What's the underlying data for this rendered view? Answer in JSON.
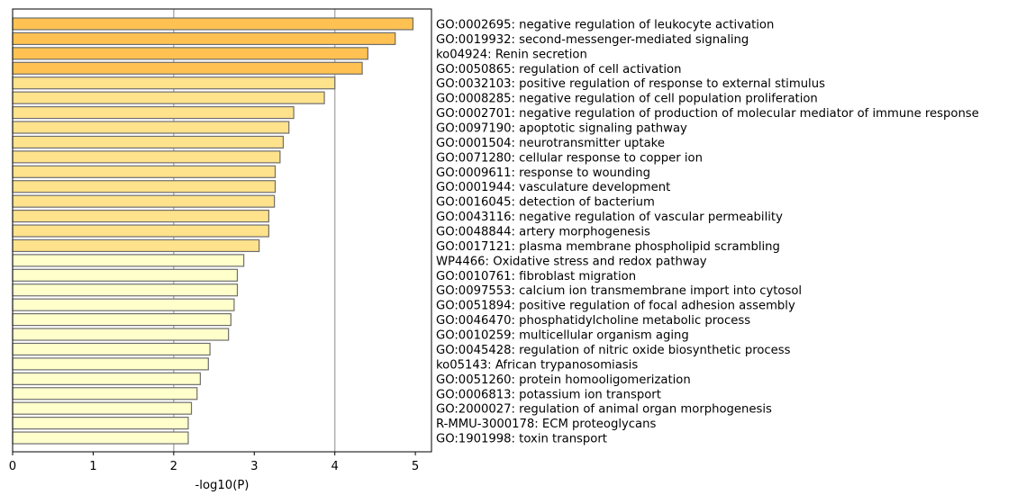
{
  "chart_data": {
    "type": "bar",
    "orientation": "horizontal",
    "xlabel": "-log10(P)",
    "xlim": [
      0,
      5.2
    ],
    "xticks": [
      "0",
      "1",
      "2",
      "3",
      "4",
      "5"
    ],
    "grid": "vertical lines at x=2 and x=4",
    "categories": [
      "GO:0002695: negative regulation of leukocyte activation",
      "GO:0019932: second-messenger-mediated signaling",
      "ko04924: Renin secretion",
      "GO:0050865: regulation of cell activation",
      "GO:0032103: positive regulation of response to external stimulus",
      "GO:0008285: negative regulation of cell population proliferation",
      "GO:0002701: negative regulation of production of molecular mediator of immune response",
      "GO:0097190: apoptotic signaling pathway",
      "GO:0001504: neurotransmitter uptake",
      "GO:0071280: cellular response to copper ion",
      "GO:0009611: response to wounding",
      "GO:0001944: vasculature development",
      "GO:0016045: detection of bacterium",
      "GO:0043116: negative regulation of vascular permeability",
      "GO:0048844: artery morphogenesis",
      "GO:0017121: plasma membrane phospholipid scrambling",
      "WP4466: Oxidative stress and redox pathway",
      "GO:0010761: fibroblast migration",
      "GO:0097553: calcium ion transmembrane import into cytosol",
      "GO:0051894: positive regulation of focal adhesion assembly",
      "GO:0046470: phosphatidylcholine metabolic process",
      "GO:0010259: multicellular organism aging",
      "GO:0045428: regulation of nitric oxide biosynthetic process",
      "ko05143: African trypanosomiasis",
      "GO:0051260: protein homooligomerization",
      "GO:0006813: potassium ion transport",
      "GO:2000027: regulation of animal organ morphogenesis",
      "R-MMU-3000178: ECM proteoglycans",
      "GO:1901998: toxin transport"
    ],
    "values": [
      4.97,
      4.75,
      4.41,
      4.34,
      4.0,
      3.87,
      3.49,
      3.43,
      3.36,
      3.32,
      3.26,
      3.26,
      3.25,
      3.18,
      3.18,
      3.06,
      2.87,
      2.79,
      2.79,
      2.75,
      2.71,
      2.68,
      2.45,
      2.43,
      2.33,
      2.29,
      2.22,
      2.18,
      2.18
    ],
    "colors": {
      "strong": "#ffc252",
      "medium": "#ffe28c",
      "light": "#ffffcc",
      "edge": "#6e6e6e",
      "grid": "#b0b0b0"
    },
    "color_levels": [
      "strong",
      "strong",
      "strong",
      "strong",
      "medium",
      "medium",
      "medium",
      "medium",
      "medium",
      "medium",
      "medium",
      "medium",
      "medium",
      "medium",
      "medium",
      "medium",
      "light",
      "light",
      "light",
      "light",
      "light",
      "light",
      "light",
      "light",
      "light",
      "light",
      "light",
      "light",
      "light"
    ]
  }
}
